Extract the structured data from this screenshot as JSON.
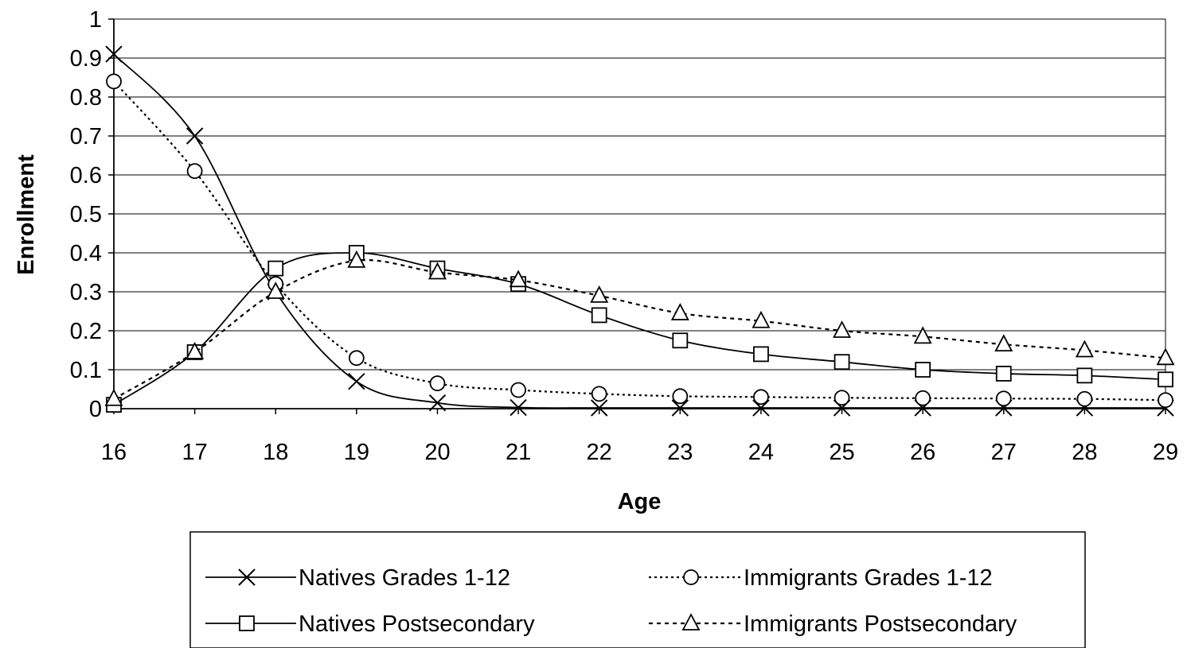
{
  "chart_data": {
    "type": "line",
    "xlabel": "Age",
    "ylabel": "Enrollment",
    "x": [
      16,
      17,
      18,
      19,
      20,
      21,
      22,
      23,
      24,
      25,
      26,
      27,
      28,
      29
    ],
    "xlim": [
      16,
      29
    ],
    "ylim": [
      0,
      1
    ],
    "yticks": [
      "0",
      "0.1",
      "0.2",
      "0.3",
      "0.4",
      "0.5",
      "0.6",
      "0.7",
      "0.8",
      "0.9",
      "1"
    ],
    "xticks": [
      "16",
      "17",
      "18",
      "19",
      "20",
      "21",
      "22",
      "23",
      "24",
      "25",
      "26",
      "27",
      "28",
      "29"
    ],
    "grid": "horizontal",
    "legend_position": "bottom",
    "series": [
      {
        "name": "Natives Grades 1-12",
        "marker": "x",
        "line": "solid",
        "color": "#000000",
        "values": [
          0.91,
          0.7,
          0.3,
          0.07,
          0.015,
          0.003,
          0.002,
          0.002,
          0.002,
          0.002,
          0.002,
          0.002,
          0.002,
          0.002
        ]
      },
      {
        "name": "Immigrants Grades 1-12",
        "marker": "circle",
        "line": "dotted",
        "color": "#000000",
        "values": [
          0.84,
          0.61,
          0.32,
          0.13,
          0.065,
          0.048,
          0.038,
          0.032,
          0.03,
          0.028,
          0.027,
          0.026,
          0.025,
          0.022
        ]
      },
      {
        "name": "Natives Postsecondary",
        "marker": "square",
        "line": "solid",
        "color": "#000000",
        "values": [
          0.01,
          0.145,
          0.36,
          0.4,
          0.36,
          0.32,
          0.24,
          0.175,
          0.14,
          0.12,
          0.1,
          0.09,
          0.085,
          0.075
        ]
      },
      {
        "name": "Immigrants Postsecondary",
        "marker": "triangle",
        "line": "dashed",
        "color": "#000000",
        "values": [
          0.025,
          0.145,
          0.3,
          0.38,
          0.35,
          0.33,
          0.29,
          0.245,
          0.225,
          0.2,
          0.185,
          0.165,
          0.15,
          0.13
        ]
      }
    ]
  }
}
